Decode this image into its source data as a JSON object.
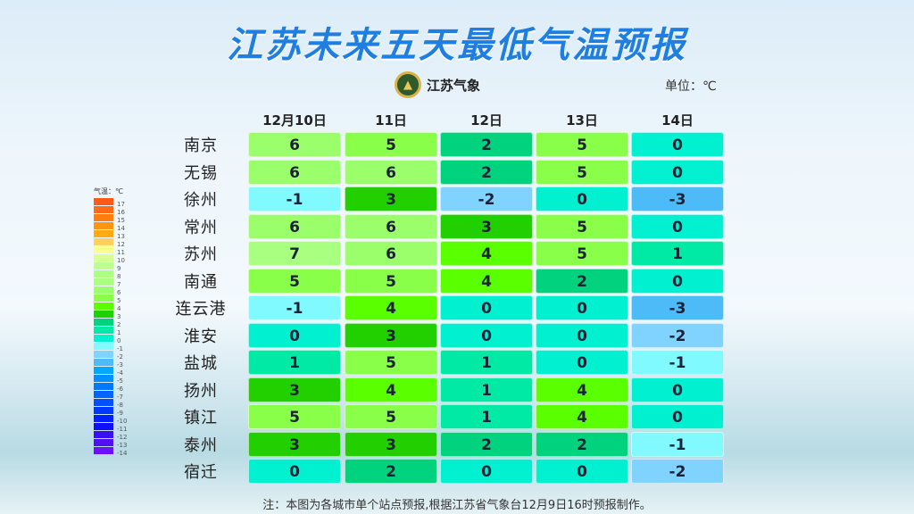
{
  "title": "江苏未来五天最低气温预报",
  "logo": {
    "text": "江苏气象",
    "icon": "pagoda-emblem-icon"
  },
  "unit": "单位：℃",
  "columns": [
    "12月10日",
    "11日",
    "12日",
    "13日",
    "14日"
  ],
  "rows": [
    {
      "city": "南京",
      "values": [
        6,
        5,
        2,
        5,
        0
      ]
    },
    {
      "city": "无锡",
      "values": [
        6,
        6,
        2,
        5,
        0
      ]
    },
    {
      "city": "徐州",
      "values": [
        -1,
        3,
        -2,
        0,
        -3
      ]
    },
    {
      "city": "常州",
      "values": [
        6,
        6,
        3,
        5,
        0
      ]
    },
    {
      "city": "苏州",
      "values": [
        7,
        6,
        4,
        5,
        1
      ]
    },
    {
      "city": "南通",
      "values": [
        5,
        5,
        4,
        2,
        0
      ]
    },
    {
      "city": "连云港",
      "values": [
        -1,
        4,
        0,
        0,
        -3
      ]
    },
    {
      "city": "淮安",
      "values": [
        0,
        3,
        0,
        0,
        -2
      ]
    },
    {
      "city": "盐城",
      "values": [
        1,
        5,
        1,
        0,
        -1
      ]
    },
    {
      "city": "扬州",
      "values": [
        3,
        4,
        1,
        4,
        0
      ]
    },
    {
      "city": "镇江",
      "values": [
        5,
        5,
        1,
        4,
        0
      ]
    },
    {
      "city": "泰州",
      "values": [
        3,
        3,
        2,
        2,
        -1
      ]
    },
    {
      "city": "宿迁",
      "values": [
        0,
        2,
        0,
        0,
        -2
      ]
    }
  ],
  "legend": {
    "title": "气温：℃",
    "levels": [
      {
        "v": "17",
        "c": "#ff5a14"
      },
      {
        "v": "16",
        "c": "#ff6a14"
      },
      {
        "v": "15",
        "c": "#ff7d10"
      },
      {
        "v": "14",
        "c": "#ff9410"
      },
      {
        "v": "13",
        "c": "#ffaa10"
      },
      {
        "v": "12",
        "c": "#ffd060"
      },
      {
        "v": "11",
        "c": "#f8ff90"
      },
      {
        "v": "10",
        "c": "#d6ff96"
      },
      {
        "v": "9",
        "c": "#bcff90"
      },
      {
        "v": "8",
        "c": "#adff80"
      },
      {
        "v": "7",
        "c": "#a8ff80"
      },
      {
        "v": "6",
        "c": "#9bff6b"
      },
      {
        "v": "5",
        "c": "#8aff4a"
      },
      {
        "v": "4",
        "c": "#5aff00"
      },
      {
        "v": "3",
        "c": "#22d000"
      },
      {
        "v": "2",
        "c": "#00d27e"
      },
      {
        "v": "1",
        "c": "#00eaa6"
      },
      {
        "v": "0",
        "c": "#00f0d0"
      },
      {
        "v": "-1",
        "c": "#80faff"
      },
      {
        "v": "-2",
        "c": "#80d2ff"
      },
      {
        "v": "-3",
        "c": "#4dbbf8"
      },
      {
        "v": "-4",
        "c": "#00a8ff"
      },
      {
        "v": "-5",
        "c": "#0090ff"
      },
      {
        "v": "-6",
        "c": "#0078ff"
      },
      {
        "v": "-7",
        "c": "#0064ff"
      },
      {
        "v": "-8",
        "c": "#0050ff"
      },
      {
        "v": "-9",
        "c": "#0038ff"
      },
      {
        "v": "-10",
        "c": "#0020ff"
      },
      {
        "v": "-11",
        "c": "#1010f8"
      },
      {
        "v": "-12",
        "c": "#3a10f0"
      },
      {
        "v": "-13",
        "c": "#5010f0"
      },
      {
        "v": "-14",
        "c": "#6a10ff"
      }
    ]
  },
  "note": "注：本图为各城市单个站点预报,根据江苏省气象台12月9日16时预报制作。"
}
